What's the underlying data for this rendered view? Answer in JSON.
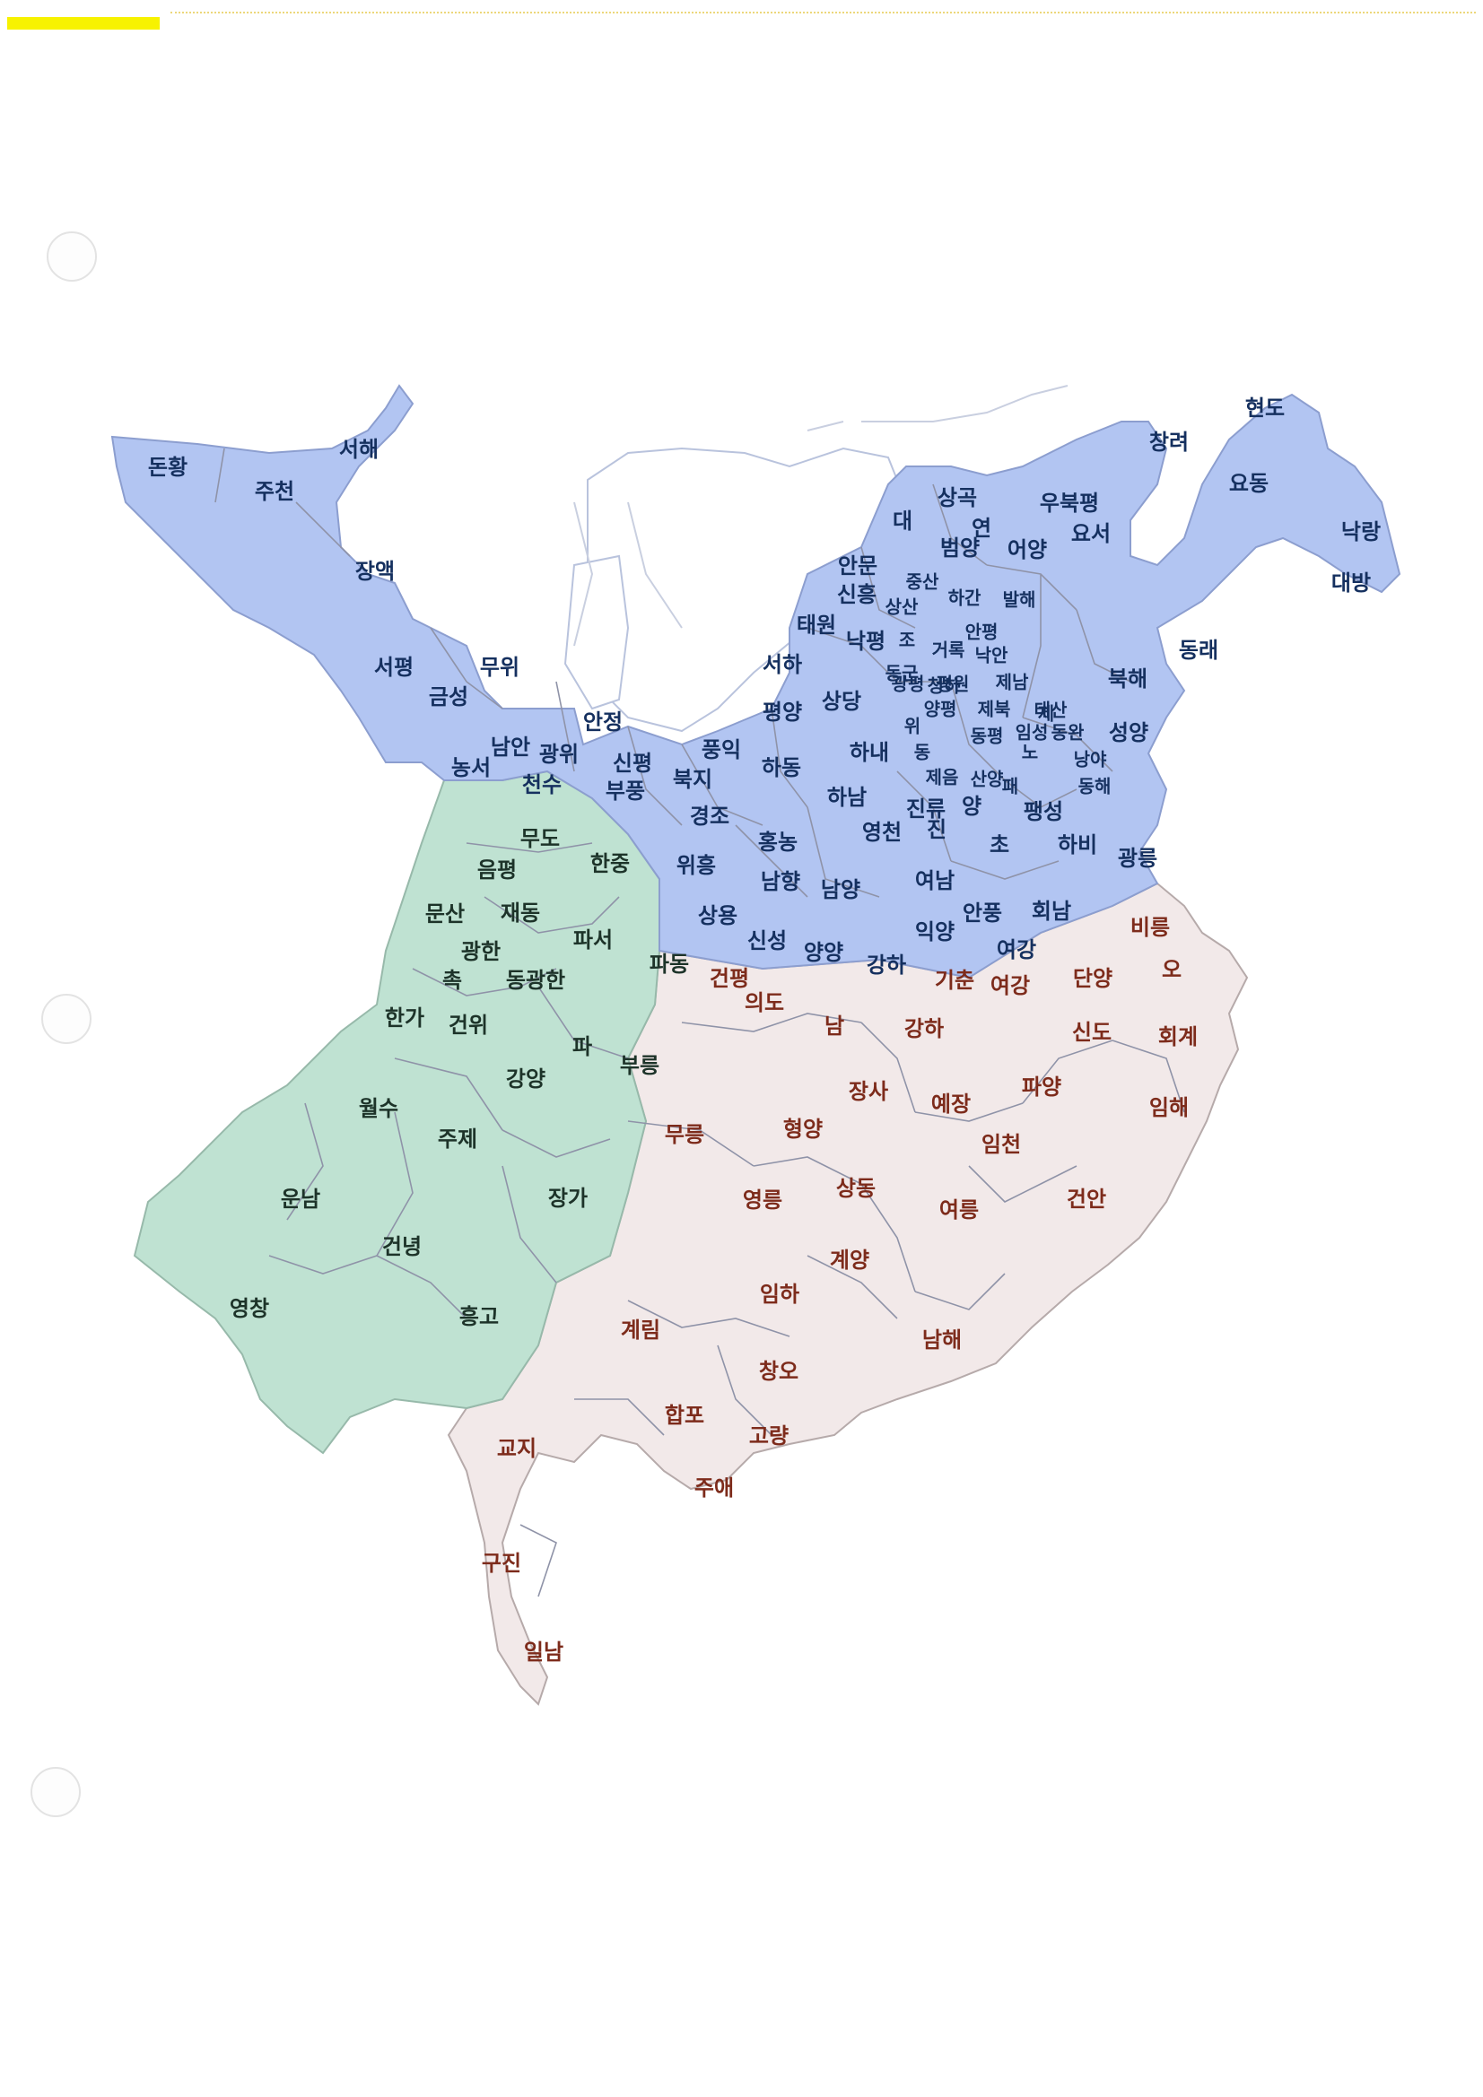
{
  "colors": {
    "wei": "#b2c5f2",
    "shu": "#bfe2d2",
    "wu": "#f2e9e9",
    "scan_highlight": "#f7f200"
  },
  "wei_labels": [
    "돈황",
    "주천",
    "서해",
    "장액",
    "서평",
    "무위",
    "금성",
    "농서",
    "남안",
    "광위",
    "천수",
    "안정",
    "신평",
    "부풍",
    "풍익",
    "북지",
    "경조",
    "홍농",
    "하동",
    "평양",
    "서하",
    "태원",
    "상당",
    "하내",
    "하남",
    "영천",
    "진",
    "여남",
    "남양",
    "남향",
    "위흥",
    "상용",
    "신성",
    "양양",
    "강하",
    "익양",
    "안풍",
    "회남",
    "여강",
    "초",
    "하비",
    "팽성",
    "광릉",
    "양",
    "패",
    "진류",
    "제음",
    "산양",
    "노",
    "임성",
    "동평",
    "태산",
    "동완",
    "낭야",
    "동해",
    "성양",
    "북해",
    "동래",
    "제남",
    "제북",
    "제",
    "낙안",
    "평원",
    "청하",
    "안평",
    "광평",
    "양평",
    "위",
    "동",
    "조",
    "거록",
    "하간",
    "발해",
    "중산",
    "상산",
    "신흥",
    "안문",
    "대",
    "범양",
    "연",
    "상곡",
    "우북평",
    "어양",
    "요서",
    "창려",
    "현도",
    "요동",
    "낙랑",
    "대방",
    "낙평",
    "동군"
  ],
  "shu_labels": [
    "무도",
    "음평",
    "한중",
    "문산",
    "재동",
    "광한",
    "파서",
    "촉",
    "동광한",
    "파동",
    "한가",
    "건위",
    "파",
    "부릉",
    "강양",
    "월수",
    "주제",
    "운남",
    "장가",
    "건녕",
    "영창",
    "흥고"
  ],
  "wu_labels": [
    "건평",
    "의도",
    "남",
    "강하",
    "기춘",
    "여강",
    "단양",
    "오",
    "비릉",
    "신도",
    "회계",
    "장사",
    "예장",
    "파양",
    "임해",
    "무릉",
    "형양",
    "임천",
    "영릉",
    "상동",
    "여릉",
    "건안",
    "계양",
    "임하",
    "계림",
    "남해",
    "창오",
    "합포",
    "고량",
    "교지",
    "주애",
    "구진",
    "일남"
  ]
}
